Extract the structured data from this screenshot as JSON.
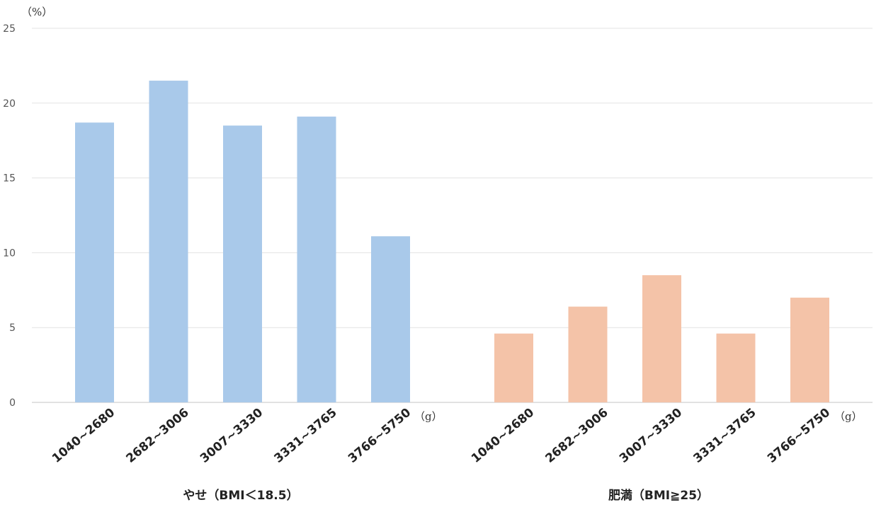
{
  "chart_data": {
    "type": "bar",
    "y_unit": "（%）",
    "x_unit": "（g）",
    "ylim": [
      0,
      25
    ],
    "yticks": [
      0,
      5,
      10,
      15,
      20,
      25
    ],
    "grid": true,
    "groups": [
      {
        "name": "やせ（BMI＜18.5）",
        "color": "#a9c9ea",
        "categories": [
          "1040~2680",
          "2682~3006",
          "3007~3330",
          "3331~3765",
          "3766~5750"
        ],
        "values": [
          18.7,
          21.5,
          18.5,
          19.1,
          11.1
        ]
      },
      {
        "name": "肥満（BMI≧25）",
        "color": "#f4c3a8",
        "categories": [
          "1040~2680",
          "2682~3006",
          "3007~3330",
          "3331~3765",
          "3766~5750"
        ],
        "values": [
          4.6,
          6.4,
          8.5,
          4.6,
          7.0
        ]
      }
    ]
  }
}
